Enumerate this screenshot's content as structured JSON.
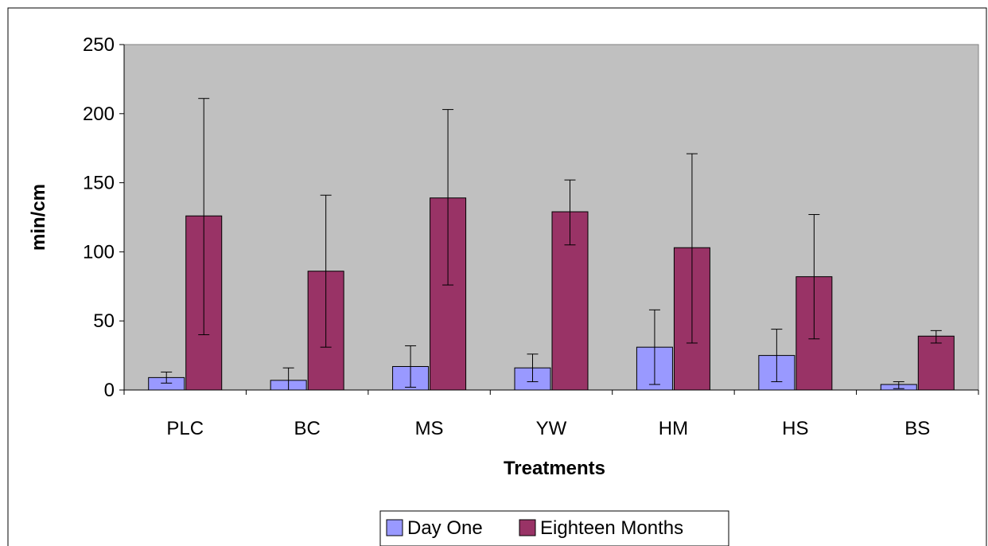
{
  "chart_data": {
    "type": "bar",
    "title": "",
    "xlabel": "Treatments",
    "ylabel": "min/cm",
    "ylim": [
      0,
      250
    ],
    "yticks": [
      0,
      50,
      100,
      150,
      200,
      250
    ],
    "grid": false,
    "legend_position": "bottom",
    "categories": [
      "PLC",
      "BC",
      "MS",
      "YW",
      "HM",
      "HS",
      "BS"
    ],
    "series": [
      {
        "name": "Day One",
        "color": "#9999ff",
        "values": [
          9,
          7,
          17,
          16,
          31,
          25,
          4
        ],
        "error": [
          [
            5,
            13
          ],
          [
            0,
            16
          ],
          [
            2,
            32
          ],
          [
            6,
            26
          ],
          [
            4,
            58
          ],
          [
            6,
            44
          ],
          [
            1,
            6
          ]
        ]
      },
      {
        "name": "Eighteen Months",
        "color": "#993366",
        "values": [
          126,
          86,
          139,
          129,
          103,
          82,
          39
        ],
        "error": [
          [
            40,
            211
          ],
          [
            31,
            141
          ],
          [
            76,
            203
          ],
          [
            105,
            152
          ],
          [
            34,
            171
          ],
          [
            37,
            127
          ],
          [
            34,
            43
          ]
        ]
      }
    ],
    "plot_background": "#c0c0c0"
  }
}
